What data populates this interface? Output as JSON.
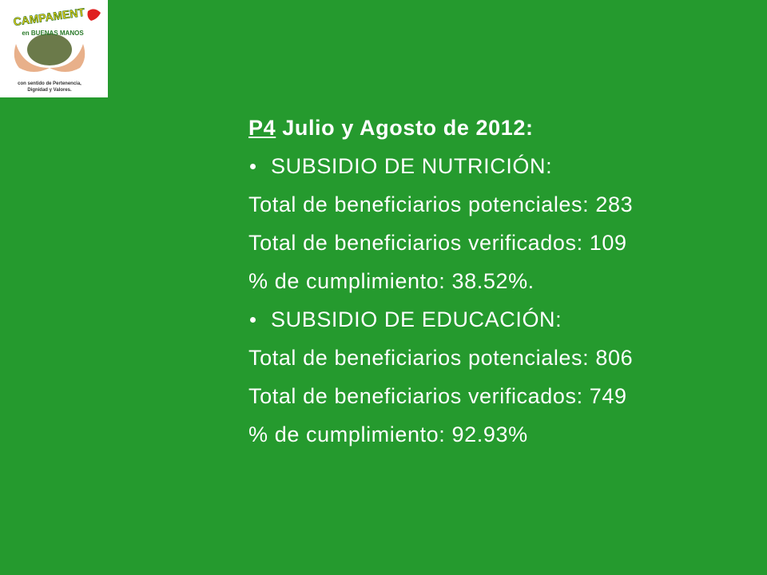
{
  "logo": {
    "title": "CAMPAMENT",
    "subtitle": "en BUENAS MANOS",
    "tagline": [
      "con sentido de Pertenencia,",
      "Dignidad y Valores."
    ]
  },
  "heading": {
    "code": "P4",
    "text": "Julio y Agosto de 2012:"
  },
  "sections": [
    {
      "title": "SUBSIDIO DE NUTRICIÓN:",
      "lines": [
        "Total de beneficiarios potenciales: 283",
        "Total de beneficiarios verificados: 109",
        "% de cumplimiento: 38.52%."
      ]
    },
    {
      "title": "SUBSIDIO DE EDUCACIÓN:",
      "lines": [
        "Total de beneficiarios potenciales: 806",
        "Total de beneficiarios verificados: 749",
        "% de cumplimiento: 92.93%"
      ]
    }
  ]
}
